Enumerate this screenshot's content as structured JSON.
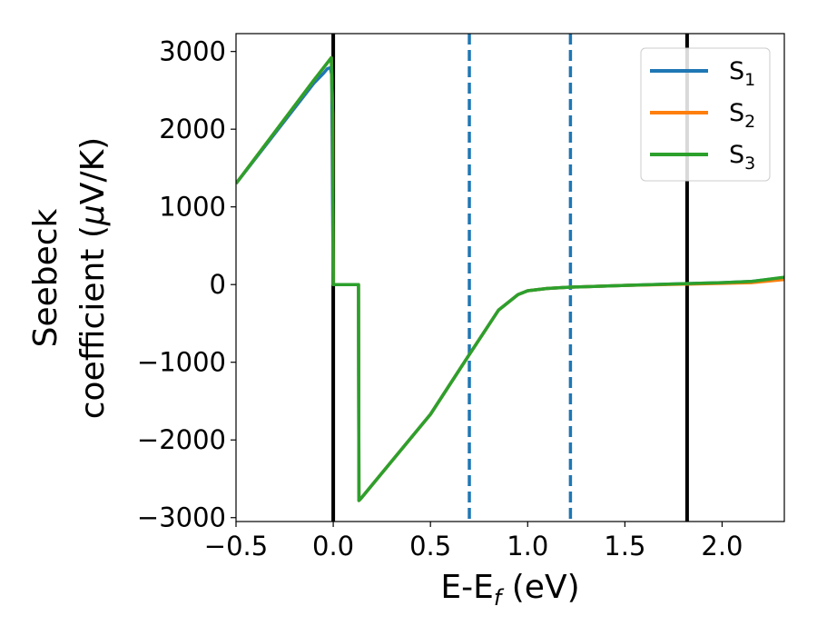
{
  "chart_data": {
    "type": "line",
    "title": "",
    "xlabel": {
      "main": "E-E",
      "sub": "f",
      "unit": " (eV)"
    },
    "ylabel": {
      "line1": "Seebeck",
      "line2_prefix": "coefficient  (",
      "mu": "μ",
      "line2_suffix": "V/K)"
    },
    "xlim": [
      -0.5,
      2.32
    ],
    "ylim": [
      -3050,
      3230
    ],
    "xticks": [
      -0.5,
      0.0,
      0.5,
      1.0,
      1.5,
      2.0
    ],
    "xtick_labels": [
      "−0.5",
      "0.0",
      "0.5",
      "1.0",
      "1.5",
      "2.0"
    ],
    "yticks": [
      3000,
      2000,
      1000,
      0,
      -1000,
      -2000,
      -3000
    ],
    "ytick_labels": [
      "3000",
      "2000",
      "1000",
      "0",
      "−1000",
      "−2000",
      "−3000"
    ],
    "grid": false,
    "legend_position": "top-right",
    "vlines": [
      {
        "x": 0.0,
        "style": "solid",
        "color": "#000000"
      },
      {
        "x": 0.7,
        "style": "dashed",
        "color": "#1f77b4"
      },
      {
        "x": 1.22,
        "style": "dashed",
        "color": "#1f77b4"
      },
      {
        "x": 1.82,
        "style": "solid",
        "color": "#000000"
      }
    ],
    "series": [
      {
        "name": "S",
        "sub": "1",
        "color": "#1f77b4",
        "x": [
          -0.5,
          -0.1,
          -0.05,
          -0.03,
          -0.015,
          -0.008,
          -0.003,
          0.0,
          0.13,
          0.132,
          0.14,
          0.5,
          0.7,
          0.85,
          0.95,
          1.0,
          1.1,
          1.2,
          1.5,
          1.8,
          2.0,
          2.15,
          2.32
        ],
        "y": [
          1300,
          2590,
          2720,
          2780,
          2790,
          2700,
          1000,
          0,
          0,
          -2780,
          -2760,
          -1670,
          -900,
          -330,
          -130,
          -80,
          -50,
          -35,
          -10,
          10,
          25,
          40,
          90
        ]
      },
      {
        "name": "S",
        "sub": "2",
        "color": "#ff7f0e",
        "x": [
          -0.5,
          -0.1,
          -0.05,
          -0.01,
          -0.003,
          0.0,
          0.13,
          0.132,
          0.14,
          0.5,
          0.7,
          0.85,
          0.95,
          1.0,
          1.1,
          1.2,
          1.5,
          1.8,
          2.0,
          2.15,
          2.32
        ],
        "y": [
          1300,
          2630,
          2790,
          2920,
          2200,
          0,
          0,
          -2780,
          -2760,
          -1670,
          -900,
          -330,
          -130,
          -80,
          -50,
          -35,
          -10,
          5,
          15,
          25,
          65
        ]
      },
      {
        "name": "S",
        "sub": "3",
        "color": "#2ca02c",
        "x": [
          -0.5,
          -0.1,
          -0.05,
          -0.01,
          -0.003,
          0.0,
          0.13,
          0.132,
          0.14,
          0.5,
          0.7,
          0.85,
          0.95,
          1.0,
          1.1,
          1.2,
          1.5,
          1.8,
          2.0,
          2.15,
          2.32
        ],
        "y": [
          1300,
          2630,
          2790,
          2920,
          2200,
          0,
          0,
          -2780,
          -2760,
          -1670,
          -900,
          -330,
          -130,
          -80,
          -50,
          -35,
          -10,
          10,
          25,
          40,
          95
        ]
      }
    ]
  }
}
